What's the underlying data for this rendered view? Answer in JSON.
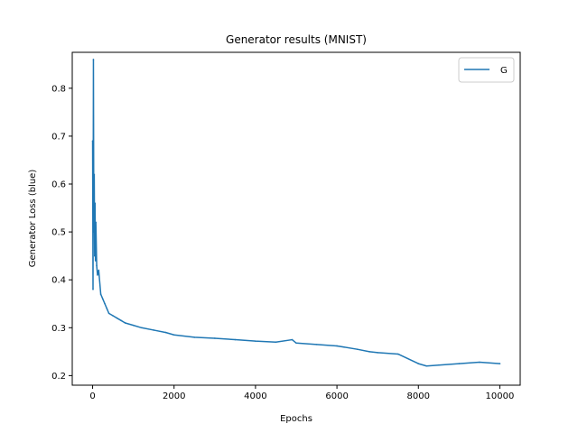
{
  "chart_data": {
    "type": "line",
    "title": "Generator results (MNIST)",
    "xlabel": "Epochs",
    "ylabel": "Generator Loss (blue)",
    "xlim": [
      -500,
      10500
    ],
    "ylim": [
      0.18,
      0.875
    ],
    "xticks": [
      0,
      2000,
      4000,
      6000,
      8000,
      10000
    ],
    "xtick_labels": [
      "0",
      "2000",
      "4000",
      "6000",
      "8000",
      "10000"
    ],
    "yticks": [
      0.2,
      0.3,
      0.4,
      0.5,
      0.6,
      0.7,
      0.8
    ],
    "ytick_labels": [
      "0.2",
      "0.3",
      "0.4",
      "0.5",
      "0.6",
      "0.7",
      "0.8"
    ],
    "grid": false,
    "legend": {
      "position": "top-right"
    },
    "series": [
      {
        "name": "G",
        "color": "#1f77b4",
        "x": [
          0,
          10,
          20,
          30,
          40,
          50,
          60,
          70,
          80,
          100,
          120,
          150,
          200,
          250,
          300,
          350,
          400,
          500,
          600,
          700,
          800,
          1000,
          1200,
          1500,
          1800,
          2000,
          2500,
          3000,
          3500,
          4000,
          4500,
          4900,
          5000,
          5500,
          6000,
          6500,
          6800,
          7000,
          7500,
          8000,
          8200,
          8500,
          9000,
          9500,
          10000
        ],
        "y": [
          0.69,
          0.38,
          0.86,
          0.5,
          0.62,
          0.45,
          0.56,
          0.44,
          0.52,
          0.43,
          0.41,
          0.42,
          0.37,
          0.36,
          0.35,
          0.34,
          0.33,
          0.325,
          0.32,
          0.315,
          0.31,
          0.305,
          0.3,
          0.295,
          0.29,
          0.285,
          0.28,
          0.278,
          0.275,
          0.272,
          0.27,
          0.275,
          0.268,
          0.265,
          0.262,
          0.255,
          0.25,
          0.248,
          0.245,
          0.225,
          0.22,
          0.222,
          0.225,
          0.228,
          0.225
        ]
      }
    ]
  }
}
